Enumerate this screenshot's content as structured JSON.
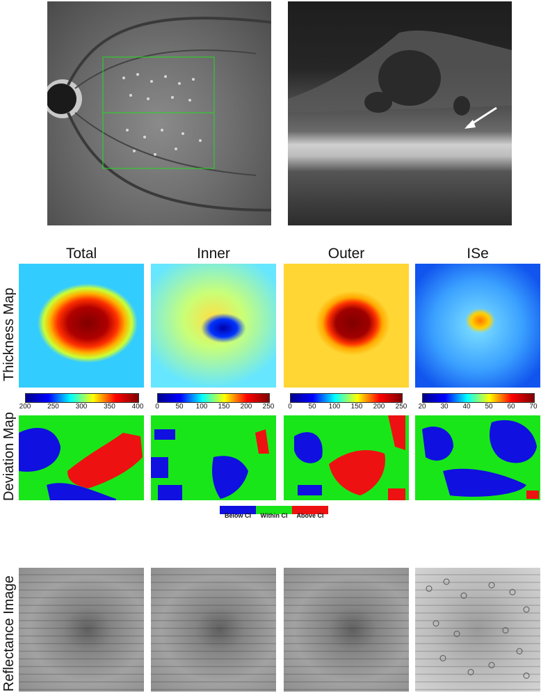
{
  "columns": [
    "Total",
    "Inner",
    "Outer",
    "ISe"
  ],
  "row_labels": {
    "thickness": "Thickness Map",
    "deviation": "Deviation Map",
    "reflectance": "Reflectance Image"
  },
  "colorbars": [
    {
      "ticks": [
        "200",
        "250",
        "300",
        "350",
        "400"
      ]
    },
    {
      "ticks": [
        "0",
        "50",
        "100",
        "150",
        "200",
        "250"
      ]
    },
    {
      "ticks": [
        "0",
        "50",
        "100",
        "150",
        "200",
        "250"
      ]
    },
    {
      "ticks": [
        "20",
        "30",
        "40",
        "50",
        "60",
        "70"
      ]
    }
  ],
  "legend": {
    "below": "Below CI",
    "within": "Within CI",
    "above": "Above CI",
    "colors": {
      "below": "#1010e0",
      "within": "#19e619",
      "above": "#ee1111"
    }
  },
  "icons": {
    "arrow": "white-arrow-icon"
  }
}
